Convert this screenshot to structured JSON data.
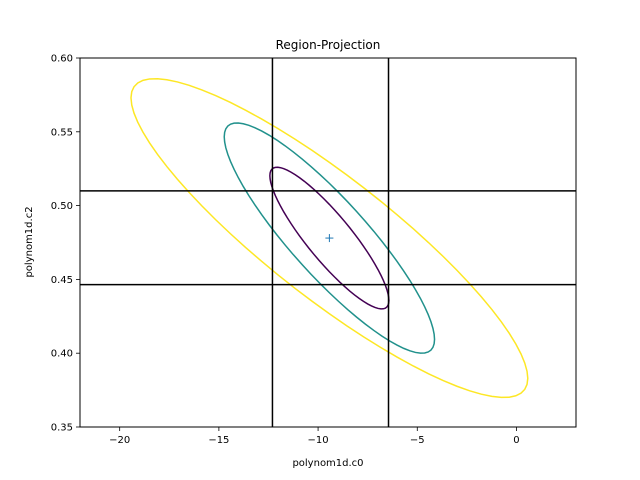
{
  "chart_data": {
    "type": "contour",
    "title": "Region-Projection",
    "xlabel": "polynom1d.c0",
    "ylabel": "polynom1d.c2",
    "xlim": [
      -22,
      3
    ],
    "ylim": [
      0.35,
      0.6
    ],
    "xticks": [
      -20,
      -15,
      -10,
      -5,
      0
    ],
    "xtick_labels": [
      "−20",
      "−15",
      "−10",
      "−5",
      "0"
    ],
    "yticks": [
      0.35,
      0.4,
      0.45,
      0.5,
      0.55,
      0.6
    ],
    "ytick_labels": [
      "0.35",
      "0.40",
      "0.45",
      "0.50",
      "0.55",
      "0.60"
    ],
    "best_fit": {
      "x": -9.43,
      "y": 0.478,
      "marker": "+",
      "color": "#1f77b4"
    },
    "vertical_lines": [
      -12.3,
      -6.45
    ],
    "horizontal_lines": [
      0.51,
      0.4465
    ],
    "contours": [
      {
        "level": 1,
        "color": "#440154",
        "center": [
          -9.43,
          0.478
        ],
        "semi_x": 3.0,
        "semi_y": 0.048,
        "rho": -0.88
      },
      {
        "level": 2,
        "color": "#21918c",
        "center": [
          -9.43,
          0.478
        ],
        "semi_x": 5.3,
        "semi_y": 0.078,
        "rho": -0.88
      },
      {
        "level": 3,
        "color": "#fde725",
        "center": [
          -9.43,
          0.478
        ],
        "semi_x": 10.0,
        "semi_y": 0.108,
        "rho": -0.88
      }
    ],
    "grid": false
  }
}
